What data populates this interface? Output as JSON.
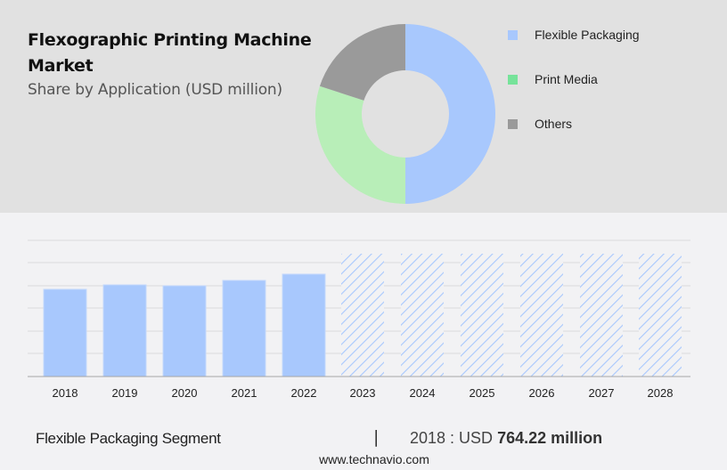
{
  "header": {
    "title": "Flexographic Printing Machine Market",
    "subtitle": "Share by Application (USD million)"
  },
  "legend": {
    "items": [
      {
        "label": "Flexible Packaging",
        "color": "#a8c8fd"
      },
      {
        "label": "Print Media",
        "color": "#76e39a"
      },
      {
        "label": "Others",
        "color": "#9a9a9a"
      }
    ]
  },
  "footer": {
    "segment": "Flexible Packaging Segment",
    "separator": "|",
    "year_label": "2018 : USD",
    "value": "764.22 million",
    "url": "www.technavio.com"
  },
  "chart_data": [
    {
      "type": "pie",
      "title": "Share by Application (USD million)",
      "subtype": "donut",
      "categories": [
        "Flexible Packaging",
        "Print Media",
        "Others"
      ],
      "values": [
        50,
        30,
        20
      ],
      "colors": [
        "#a8c8fd",
        "#b8eeb8",
        "#9a9a9a"
      ],
      "legend_position": "right"
    },
    {
      "type": "bar",
      "title": "Flexible Packaging Segment",
      "categories": [
        "2018",
        "2019",
        "2020",
        "2021",
        "2022",
        "2023",
        "2024",
        "2025",
        "2026",
        "2027",
        "2028"
      ],
      "values": [
        764.22,
        803,
        795,
        842,
        897,
        null,
        null,
        null,
        null,
        null,
        null
      ],
      "forecast_placeholder_height": 1076,
      "forecast_years": [
        "2023",
        "2024",
        "2025",
        "2026",
        "2027",
        "2028"
      ],
      "xlabel": "",
      "ylabel": "",
      "ylim": [
        0,
        1200
      ],
      "grid": true,
      "colors": {
        "actual": "#a8c8fd",
        "forecast_hatch": "#a8c8fd"
      }
    }
  ]
}
